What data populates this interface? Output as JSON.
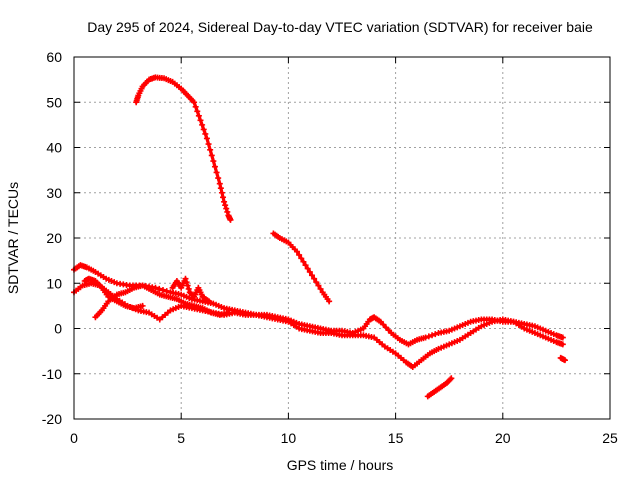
{
  "chart_data": {
    "type": "scatter",
    "title": "Day 295 of 2024, Sidereal Day-to-day VTEC variation (SDTVAR) for receiver baie",
    "xlabel": "GPS time / hours",
    "ylabel": "SDTVAR / TECUs",
    "xlim": [
      0,
      25
    ],
    "ylim": [
      -20,
      60
    ],
    "xticks": [
      0,
      5,
      10,
      15,
      20,
      25
    ],
    "yticks": [
      -20,
      -10,
      0,
      10,
      20,
      30,
      40,
      50,
      60
    ],
    "xtick_labels": [
      "0",
      "5",
      "10",
      "15",
      "20",
      "25"
    ],
    "ytick_labels": [
      "-20",
      "-10",
      "0",
      "10",
      "20",
      "30",
      "40",
      "50",
      "60"
    ],
    "grid": true,
    "legend": "none",
    "marker": "plus",
    "color": "#ff0000",
    "series": [
      {
        "name": "track-high-arc",
        "points": [
          [
            2.9,
            50
          ],
          [
            3.0,
            51.5
          ],
          [
            3.2,
            53.5
          ],
          [
            3.5,
            55
          ],
          [
            3.8,
            55.5
          ],
          [
            4.2,
            55.3
          ],
          [
            4.6,
            54.5
          ],
          [
            5.0,
            53
          ],
          [
            5.3,
            51.5
          ],
          [
            5.6,
            50
          ],
          [
            5.9,
            46
          ],
          [
            6.2,
            42
          ],
          [
            6.5,
            37
          ],
          [
            6.8,
            32
          ],
          [
            7.0,
            28
          ],
          [
            7.2,
            25
          ],
          [
            7.3,
            24
          ]
        ]
      },
      {
        "name": "track-mid-descend",
        "points": [
          [
            9.3,
            21
          ],
          [
            9.6,
            20
          ],
          [
            10.0,
            19
          ],
          [
            10.4,
            17
          ],
          [
            10.8,
            14
          ],
          [
            11.2,
            11
          ],
          [
            11.6,
            8
          ],
          [
            11.9,
            6
          ]
        ]
      },
      {
        "name": "track-main-upper",
        "points": [
          [
            0,
            13
          ],
          [
            0.3,
            14
          ],
          [
            0.6,
            13.5
          ],
          [
            1.0,
            12.5
          ],
          [
            1.5,
            11
          ],
          [
            2.0,
            10
          ],
          [
            2.6,
            9.5
          ],
          [
            3.2,
            9.5
          ],
          [
            3.8,
            9
          ],
          [
            4.5,
            8
          ],
          [
            5.0,
            7.5
          ],
          [
            5.5,
            6.5
          ],
          [
            6.0,
            6
          ],
          [
            6.5,
            5.5
          ],
          [
            7.0,
            4.5
          ],
          [
            7.5,
            4
          ],
          [
            8.0,
            3.5
          ],
          [
            8.5,
            3
          ],
          [
            9.0,
            3
          ],
          [
            9.5,
            2.5
          ],
          [
            10.0,
            2
          ],
          [
            10.5,
            1
          ],
          [
            11.0,
            0.5
          ],
          [
            11.5,
            0
          ],
          [
            12.0,
            -0.5
          ],
          [
            12.5,
            -0.5
          ],
          [
            13.0,
            -1
          ],
          [
            13.5,
            0
          ],
          [
            13.8,
            2
          ],
          [
            14.0,
            2.5
          ],
          [
            14.3,
            1.5
          ],
          [
            14.8,
            -1
          ],
          [
            15.2,
            -2.5
          ],
          [
            15.6,
            -3.5
          ],
          [
            16.0,
            -2.5
          ],
          [
            16.4,
            -2
          ],
          [
            17.0,
            -1
          ],
          [
            17.5,
            -0.5
          ],
          [
            18.0,
            0.5
          ],
          [
            18.5,
            1.5
          ],
          [
            19.0,
            2
          ],
          [
            19.5,
            2
          ],
          [
            20.0,
            1.5
          ],
          [
            20.5,
            1.5
          ],
          [
            21.0,
            1
          ],
          [
            21.5,
            0.5
          ],
          [
            22.0,
            -0.5
          ],
          [
            22.5,
            -1.5
          ],
          [
            22.8,
            -2
          ]
        ]
      },
      {
        "name": "track-main-lower",
        "points": [
          [
            0,
            8
          ],
          [
            0.4,
            9.5
          ],
          [
            0.8,
            10
          ],
          [
            1.2,
            9.5
          ],
          [
            1.6,
            8
          ],
          [
            2.0,
            6.5
          ],
          [
            2.5,
            5
          ],
          [
            3.0,
            4
          ],
          [
            3.5,
            3.5
          ],
          [
            4.0,
            2
          ],
          [
            4.5,
            4
          ],
          [
            5.0,
            5
          ],
          [
            5.5,
            4.5
          ],
          [
            6.0,
            4
          ],
          [
            6.5,
            3.5
          ],
          [
            7.0,
            3
          ],
          [
            7.5,
            3.5
          ],
          [
            8.0,
            3
          ],
          [
            8.5,
            3
          ],
          [
            9.0,
            2.5
          ],
          [
            9.5,
            2
          ],
          [
            10.0,
            1.5
          ],
          [
            10.5,
            0
          ],
          [
            11.0,
            -0.5
          ],
          [
            11.5,
            -1
          ],
          [
            12.0,
            -1
          ],
          [
            12.5,
            -1.5
          ],
          [
            13.0,
            -1.5
          ],
          [
            13.5,
            -1.5
          ],
          [
            14.0,
            -2
          ],
          [
            14.5,
            -4
          ],
          [
            15.0,
            -5.5
          ],
          [
            15.5,
            -7.5
          ],
          [
            15.8,
            -8.5
          ],
          [
            16.2,
            -7
          ],
          [
            16.6,
            -5.5
          ],
          [
            17.0,
            -4.5
          ],
          [
            17.5,
            -3.5
          ],
          [
            18.0,
            -2.5
          ],
          [
            18.5,
            -1
          ],
          [
            19.0,
            0.5
          ],
          [
            19.5,
            1.5
          ],
          [
            20.0,
            2
          ],
          [
            20.5,
            1.5
          ],
          [
            21.0,
            0
          ],
          [
            21.5,
            -1
          ],
          [
            22.0,
            -2
          ],
          [
            22.5,
            -3
          ],
          [
            22.8,
            -3.5
          ]
        ]
      },
      {
        "name": "track-early-loop-a",
        "points": [
          [
            0.5,
            10.5
          ],
          [
            0.7,
            11
          ],
          [
            1.0,
            10.5
          ],
          [
            1.3,
            9
          ],
          [
            1.6,
            7
          ],
          [
            2.0,
            6
          ],
          [
            2.4,
            5
          ],
          [
            2.8,
            4.5
          ],
          [
            3.2,
            5
          ]
        ]
      },
      {
        "name": "track-early-loop-b",
        "points": [
          [
            1.0,
            2.5
          ],
          [
            1.3,
            4
          ],
          [
            1.6,
            6
          ],
          [
            2.0,
            7.5
          ],
          [
            2.4,
            8
          ],
          [
            2.8,
            9
          ],
          [
            3.2,
            9.5
          ],
          [
            3.6,
            8.5
          ],
          [
            4.0,
            7.5
          ],
          [
            4.4,
            7
          ],
          [
            4.8,
            6.5
          ],
          [
            5.2,
            5.5
          ],
          [
            5.6,
            5
          ],
          [
            6.0,
            4.5
          ],
          [
            6.4,
            3.5
          ],
          [
            6.8,
            3
          ],
          [
            7.2,
            3.5
          ]
        ]
      },
      {
        "name": "track-bump-5",
        "points": [
          [
            4.6,
            9
          ],
          [
            4.8,
            10.5
          ],
          [
            5.0,
            9
          ],
          [
            5.2,
            11
          ],
          [
            5.4,
            8
          ],
          [
            5.6,
            7
          ],
          [
            5.8,
            9
          ],
          [
            6.0,
            7
          ],
          [
            6.3,
            6
          ]
        ]
      },
      {
        "name": "track-short-low",
        "points": [
          [
            16.5,
            -15
          ],
          [
            16.8,
            -14
          ],
          [
            17.1,
            -13
          ],
          [
            17.4,
            -12
          ],
          [
            17.6,
            -11
          ]
        ]
      },
      {
        "name": "track-end-dot",
        "points": [
          [
            22.7,
            -6.5
          ],
          [
            22.9,
            -7
          ]
        ]
      }
    ]
  }
}
